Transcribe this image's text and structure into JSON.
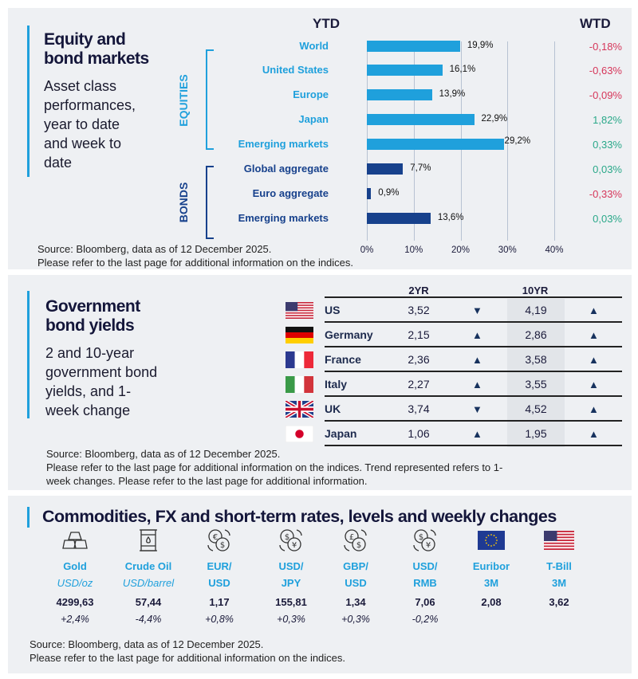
{
  "equity": {
    "title_line1": "Equity and",
    "title_line2": "bond markets",
    "subtitle": [
      "Asset class",
      "performances,",
      "year to date",
      "and week to",
      "date"
    ],
    "ytd_header": "YTD",
    "wtd_header": "WTD",
    "group_equities": "EQUITIES",
    "group_bonds": "BONDS",
    "source": "Source: Bloomberg, data as of 12 December 2025.",
    "note": "Please refer to the last page for additional information on the indices.",
    "colors": {
      "equities": "#1fa0dc",
      "bonds": "#17418c",
      "negative": "#d6365a",
      "positive": "#2aa889"
    }
  },
  "chart_data": {
    "type": "bar",
    "orientation": "horizontal",
    "categories": [
      "World",
      "United States",
      "Europe",
      "Japan",
      "Emerging  markets",
      "Global aggregate",
      "Euro aggregate",
      "Emerging  markets"
    ],
    "groups": [
      "EQUITIES",
      "EQUITIES",
      "EQUITIES",
      "EQUITIES",
      "EQUITIES",
      "BONDS",
      "BONDS",
      "BONDS"
    ],
    "values": [
      19.9,
      16.1,
      13.9,
      22.9,
      29.2,
      7.7,
      0.9,
      13.6
    ],
    "value_labels": [
      "19,9%",
      "16,1%",
      "13,9%",
      "22,9%",
      "29,2%",
      "7,7%",
      "0,9%",
      "13,6%"
    ],
    "wtd": [
      "-0,18%",
      "-0,63%",
      "-0,09%",
      "1,82%",
      "0,33%",
      "0,03%",
      "-0,33%",
      "0,03%"
    ],
    "xlim": [
      0,
      40
    ],
    "xticks": [
      "0%",
      "10%",
      "20%",
      "30%",
      "40%"
    ],
    "grid": true
  },
  "yields": {
    "title_line1": "Government",
    "title_line2": "bond yields",
    "subtitle": [
      "2 and 10-year",
      "government bond",
      "yields, and 1-",
      "week change"
    ],
    "col_2yr": "2YR",
    "col_10yr": "10YR",
    "rows": [
      {
        "country": "US",
        "flag": "us-flag",
        "y2": "3,52",
        "t2": "down",
        "y10": "4,19",
        "t10": "up"
      },
      {
        "country": "Germany",
        "flag": "germany-flag",
        "y2": "2,15",
        "t2": "up",
        "y10": "2,86",
        "t10": "up"
      },
      {
        "country": "France",
        "flag": "france-flag",
        "y2": "2,36",
        "t2": "up",
        "y10": "3,58",
        "t10": "up"
      },
      {
        "country": "Italy",
        "flag": "italy-flag",
        "y2": "2,27",
        "t2": "up",
        "y10": "3,55",
        "t10": "up"
      },
      {
        "country": "UK",
        "flag": "uk-flag",
        "y2": "3,74",
        "t2": "down",
        "y10": "4,52",
        "t10": "up"
      },
      {
        "country": "Japan",
        "flag": "japan-flag",
        "y2": "1,06",
        "t2": "up",
        "y10": "1,95",
        "t10": "up"
      }
    ],
    "source": "Source: Bloomberg, data as of 12 December 2025.",
    "note1": "Please refer to the last page for additional information on the indices. Trend represented refers to 1-",
    "note2": "week changes. Please refer to the last page for additional information."
  },
  "commodities": {
    "title": "Commodities, FX and short-term rates, levels and weekly changes",
    "items": [
      {
        "name": "Gold",
        "unit": "USD/oz",
        "unit_italic": true,
        "level": "4299,63",
        "change": "+2,4%",
        "icon": "gold-bars-icon"
      },
      {
        "name": "Crude Oil",
        "unit": "USD/barrel",
        "unit_italic": true,
        "level": "57,44",
        "change": "-4,4%",
        "icon": "oil-barrel-icon"
      },
      {
        "name": "EUR/",
        "unit": "USD",
        "level": "1,17",
        "change": "+0,8%",
        "icon": "euro-dollar-exchange-icon"
      },
      {
        "name": "USD/",
        "unit": "JPY",
        "level": "155,81",
        "change": "+0,3%",
        "icon": "dollar-yen-exchange-icon"
      },
      {
        "name": "GBP/",
        "unit": "USD",
        "level": "1,34",
        "change": "+0,3%",
        "icon": "pound-dollar-exchange-icon"
      },
      {
        "name": "USD/",
        "unit": "RMB",
        "level": "7,06",
        "change": "-0,2%",
        "icon": "dollar-yuan-exchange-icon"
      },
      {
        "name": "Euribor",
        "unit": "3M",
        "level": "2,08",
        "change": "",
        "icon": "eu-flag-icon"
      },
      {
        "name": "T-Bill",
        "unit": "3M",
        "level": "3,62",
        "change": "",
        "icon": "us-flag-icon"
      }
    ],
    "source": "Source: Bloomberg, data as of 12 December 2025.",
    "note": "Please refer to the last page for additional information on the indices."
  }
}
